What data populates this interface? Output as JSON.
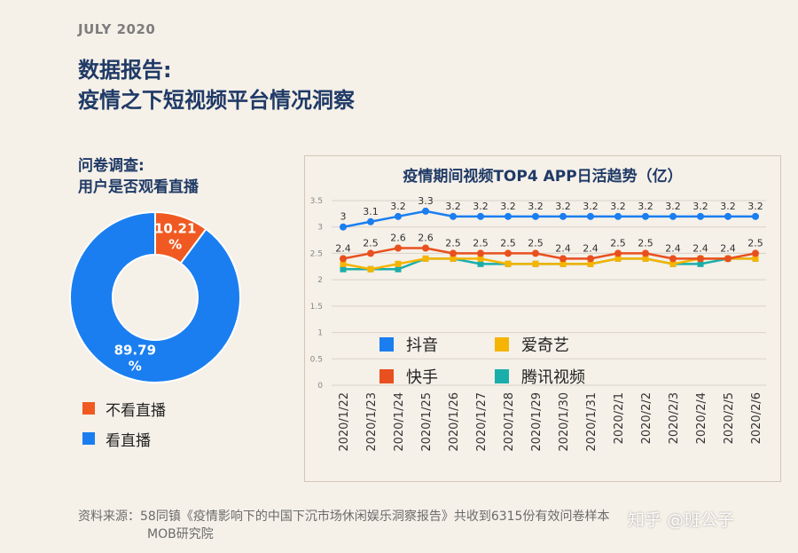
{
  "header": {
    "date": "JULY 2020",
    "title_line1": "数据报告:",
    "title_line2": "疫情之下短视频平台情况洞察"
  },
  "survey": {
    "title_line1": "问卷调查:",
    "title_line2": "用户是否观看直播"
  },
  "chart_data": [
    {
      "type": "pie",
      "style": "donut",
      "categories": [
        "不看直播",
        "看直播"
      ],
      "values": [
        10.21,
        89.79
      ],
      "value_labels": [
        "10.21%",
        "89.79%"
      ],
      "colors": [
        "#f05a22",
        "#1a7ef0"
      ],
      "legend_position": "bottom-left"
    },
    {
      "type": "line",
      "title": "疫情期间视频TOP4 APP日活趋势（亿）",
      "categories": [
        "2020/1/22",
        "2020/1/23",
        "2020/1/24",
        "2020/1/25",
        "2020/1/26",
        "2020/1/27",
        "2020/1/28",
        "2020/1/29",
        "2020/1/30",
        "2020/1/31",
        "2020/2/1",
        "2020/2/2",
        "2020/2/3",
        "2020/2/4",
        "2020/2/5",
        "2020/2/6"
      ],
      "ylim": [
        0,
        3.5
      ],
      "yticks": [
        "0",
        "0.5",
        "1",
        "1.5",
        "2",
        "2.5",
        "3",
        "3.5"
      ],
      "grid": true,
      "legend_position": "center-left",
      "series": [
        {
          "name": "抖音",
          "color": "#1a7ef0",
          "labeled": true,
          "values": [
            3,
            3.1,
            3.2,
            3.3,
            3.2,
            3.2,
            3.2,
            3.2,
            3.2,
            3.2,
            3.2,
            3.2,
            3.2,
            3.2,
            3.2,
            3.2
          ]
        },
        {
          "name": "快手",
          "color": "#e8501f",
          "labeled": true,
          "values": [
            2.4,
            2.5,
            2.6,
            2.6,
            2.5,
            2.5,
            2.5,
            2.5,
            2.4,
            2.4,
            2.5,
            2.5,
            2.4,
            2.4,
            2.4,
            2.5
          ]
        },
        {
          "name": "爱奇艺",
          "color": "#f5b400",
          "labeled": false,
          "values": [
            2.3,
            2.2,
            2.3,
            2.4,
            2.4,
            2.4,
            2.3,
            2.3,
            2.3,
            2.3,
            2.4,
            2.4,
            2.3,
            2.4,
            2.4,
            2.4
          ]
        },
        {
          "name": "腾讯视频",
          "color": "#1aaeaa",
          "labeled": false,
          "values": [
            2.2,
            2.2,
            2.2,
            2.4,
            2.4,
            2.3,
            2.3,
            2.3,
            2.3,
            2.3,
            2.4,
            2.4,
            2.3,
            2.3,
            2.4,
            2.4
          ]
        }
      ]
    }
  ],
  "footer": {
    "source_line1": "资料来源：58同镇《疫情影响下的中国下沉市场休闲娱乐洞察报告》共收到6315份有效问卷样本",
    "source_line2": "MOB研究院",
    "watermark": "知乎 @班公子"
  }
}
